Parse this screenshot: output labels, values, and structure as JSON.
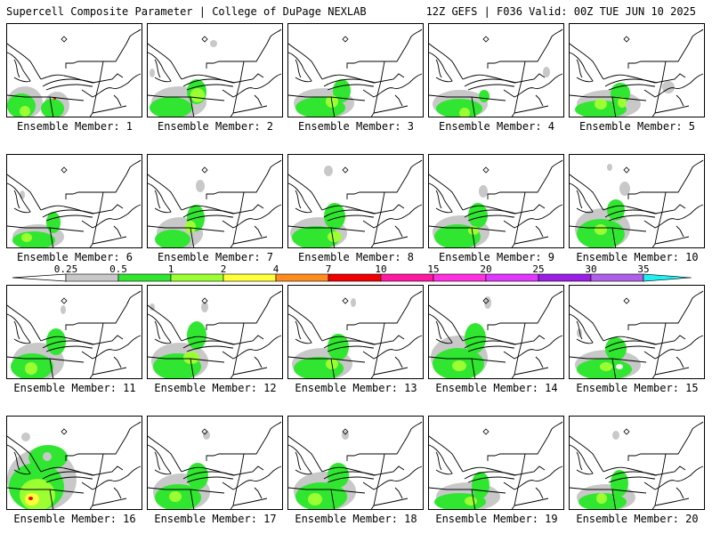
{
  "header": {
    "left": "Supercell Composite Parameter | College of DuPage NEXLAB",
    "right": "12Z GEFS | F036 Valid: 00Z TUE JUN 10 2025"
  },
  "colors": {
    "gray": "#c8c8c8",
    "green": "#31e631",
    "lightgreen": "#9cff32",
    "yellow": "#ffff3a",
    "orange": "#ff8c1e",
    "red": "#f00000",
    "magenta": "#ff18a0",
    "pink": "#ff30e0",
    "violet": "#e038ff",
    "purple": "#9a1ee6",
    "lavender": "#b060e8",
    "cyan": "#20f0f0"
  },
  "legend": {
    "labels": [
      "0.25",
      "0.5",
      "1",
      "2",
      "4",
      "7",
      "10",
      "15",
      "20",
      "25",
      "30",
      "35"
    ],
    "colors": [
      "#c8c8c8",
      "#31e631",
      "#9cff32",
      "#ffff3a",
      "#ff8c1e",
      "#f00000",
      "#ff18a0",
      "#ff30e0",
      "#e038ff",
      "#9a1ee6",
      "#b060e8",
      "#20f0f0"
    ]
  },
  "members": [
    {
      "label": "Ensemble Member: 1"
    },
    {
      "label": "Ensemble Member: 2"
    },
    {
      "label": "Ensemble Member: 3"
    },
    {
      "label": "Ensemble Member: 4"
    },
    {
      "label": "Ensemble Member: 5"
    },
    {
      "label": "Ensemble Member: 6"
    },
    {
      "label": "Ensemble Member: 7"
    },
    {
      "label": "Ensemble Member: 8"
    },
    {
      "label": "Ensemble Member: 9"
    },
    {
      "label": "Ensemble Member: 10"
    },
    {
      "label": "Ensemble Member: 11"
    },
    {
      "label": "Ensemble Member: 12"
    },
    {
      "label": "Ensemble Member: 13"
    },
    {
      "label": "Ensemble Member: 14"
    },
    {
      "label": "Ensemble Member: 15"
    },
    {
      "label": "Ensemble Member: 16"
    },
    {
      "label": "Ensemble Member: 17"
    },
    {
      "label": "Ensemble Member: 18"
    },
    {
      "label": "Ensemble Member: 19"
    },
    {
      "label": "Ensemble Member: 20"
    }
  ]
}
